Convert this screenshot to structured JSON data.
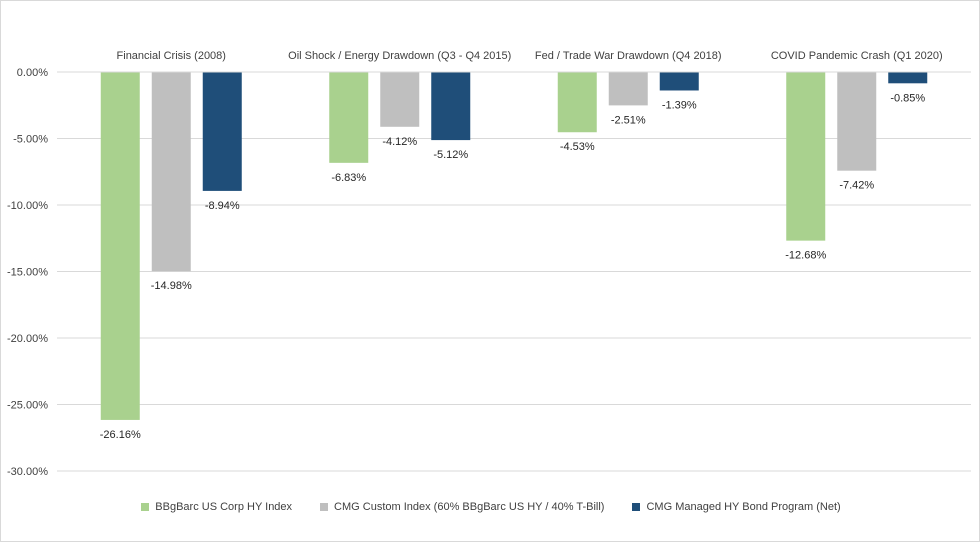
{
  "chart_data": {
    "type": "bar",
    "title": "",
    "xlabel": "",
    "ylabel": "",
    "ylim": [
      -30,
      0
    ],
    "yticks": [
      "0.00%",
      "-5.00%",
      "-10.00%",
      "-15.00%",
      "-20.00%",
      "-25.00%",
      "-30.00%"
    ],
    "ytick_values": [
      0,
      -5,
      -10,
      -15,
      -20,
      -25,
      -30
    ],
    "grid": true,
    "legend_position": "bottom",
    "categories": [
      "Financial Crisis (2008)",
      "Oil Shock / Energy Drawdown (Q3 - Q4 2015)",
      "Fed / Trade War Drawdown (Q4 2018)",
      "COVID Pandemic Crash (Q1 2020)"
    ],
    "series": [
      {
        "name": "BBgBarc US Corp HY Index",
        "color": "#a9d18e",
        "values": [
          -26.16,
          -6.83,
          -4.53,
          -12.68
        ],
        "labels": [
          "-26.16%",
          "-6.83%",
          "-4.53%",
          "-12.68%"
        ]
      },
      {
        "name": "CMG Custom Index (60% BBgBarc US HY / 40% T-Bill)",
        "color": "#bfbfbf",
        "values": [
          -14.98,
          -4.12,
          -2.51,
          -7.42
        ],
        "labels": [
          "-14.98%",
          "-4.12%",
          "-2.51%",
          "-7.42%"
        ]
      },
      {
        "name": "CMG Managed HY Bond Program (Net)",
        "color": "#1f4e79",
        "values": [
          -8.94,
          -5.12,
          -1.39,
          -0.85
        ],
        "labels": [
          "-8.94%",
          "-5.12%",
          "-1.39%",
          "-0.85%"
        ]
      }
    ]
  }
}
